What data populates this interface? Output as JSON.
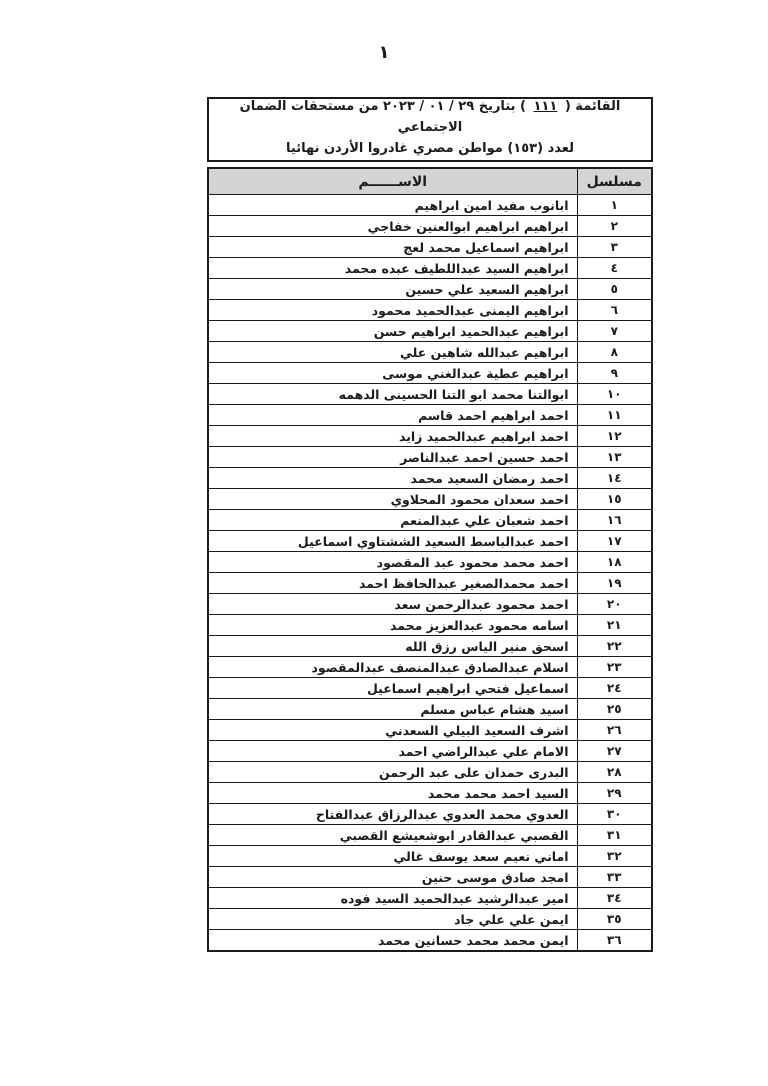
{
  "page": {
    "number": "١"
  },
  "header": {
    "line1_prefix": "القائمة ( ",
    "list_number": "١١١",
    "line1_suffix": " ) بتاريخ ٢٩ / ٠١ / ٢٠٢٣ من مستحقات الضمان الاجتماعي",
    "line2": "لعدد (١٥٣) مواطن مصري غادروا الأردن نهائيا"
  },
  "table": {
    "columns": {
      "name": "الاســــــم",
      "serial": "مسلسل"
    },
    "rows": [
      {
        "serial": "١",
        "name": "ابانوب مفيد امين ابراهيم"
      },
      {
        "serial": "٢",
        "name": "ابراهيم ابراهيم ابوالعنين خفاجي"
      },
      {
        "serial": "٣",
        "name": "ابراهيم اسماعيل محمد لعج"
      },
      {
        "serial": "٤",
        "name": "ابراهيم السيد عبداللطيف عبده محمد"
      },
      {
        "serial": "٥",
        "name": "ابراهيم السعيد علي حسين"
      },
      {
        "serial": "٦",
        "name": "ابراهيم اليمنى عبدالحميد محمود"
      },
      {
        "serial": "٧",
        "name": "ابراهيم عبدالحميد ابراهيم حسن"
      },
      {
        "serial": "٨",
        "name": "ابراهيم عبدالله شاهين علي"
      },
      {
        "serial": "٩",
        "name": "ابراهيم عطية عبدالغني موسى"
      },
      {
        "serial": "١٠",
        "name": "ابوالتنا محمد ابو التنا الحسينى الدهمه"
      },
      {
        "serial": "١١",
        "name": "احمد ابراهيم احمد قاسم"
      },
      {
        "serial": "١٢",
        "name": "احمد ابراهيم عبدالحميد زايد"
      },
      {
        "serial": "١٣",
        "name": "احمد حسين احمد عبدالناصر"
      },
      {
        "serial": "١٤",
        "name": "احمد رمضان السعيد محمد"
      },
      {
        "serial": "١٥",
        "name": "احمد سعدان محمود المحلاوي"
      },
      {
        "serial": "١٦",
        "name": "احمد شعبان علي عبدالمنعم"
      },
      {
        "serial": "١٧",
        "name": "احمد عبدالباسط السعيد الششتاوي اسماعيل"
      },
      {
        "serial": "١٨",
        "name": "احمد محمد محمود عبد المقصود"
      },
      {
        "serial": "١٩",
        "name": "احمد محمدالصغير عبدالحافظ احمد"
      },
      {
        "serial": "٢٠",
        "name": "احمد محمود عبدالرحمن سعد"
      },
      {
        "serial": "٢١",
        "name": "اسامه محمود عبدالعزيز محمد"
      },
      {
        "serial": "٢٢",
        "name": "اسحق منير الياس رزق الله"
      },
      {
        "serial": "٢٣",
        "name": "اسلام عبدالصادق عبدالمنصف عبدالمقصود"
      },
      {
        "serial": "٢٤",
        "name": "اسماعيل فتحي ابراهيم اسماعيل"
      },
      {
        "serial": "٢٥",
        "name": "اسيد هشام عباس مسلم"
      },
      {
        "serial": "٢٦",
        "name": "اشرف السعيد البيلي السعدني"
      },
      {
        "serial": "٢٧",
        "name": "الامام علي عبدالراضي احمد"
      },
      {
        "serial": "٢٨",
        "name": "البدرى حمدان على عبد الرحمن"
      },
      {
        "serial": "٢٩",
        "name": "السيد احمد محمد محمد"
      },
      {
        "serial": "٣٠",
        "name": "العدوي محمد العدوي عبدالرزاق عبدالفتاح"
      },
      {
        "serial": "٣١",
        "name": "القصبي عبدالقادر ابوشعيشع القصبي"
      },
      {
        "serial": "٣٢",
        "name": "اماني نعيم سعد يوسف غالي"
      },
      {
        "serial": "٣٣",
        "name": "امجد صادق موسى حنين"
      },
      {
        "serial": "٣٤",
        "name": "امير عبدالرشيد عبدالحميد السيد فوده"
      },
      {
        "serial": "٣٥",
        "name": "ايمن علي علي جاد"
      },
      {
        "serial": "٣٦",
        "name": "ايمن محمد محمد حسانين محمد"
      }
    ]
  },
  "colors": {
    "table_header_bg": "#d4d4d4",
    "border": "#1b1b1b",
    "text": "#1b1b1b",
    "page_bg": "#ffffff"
  }
}
